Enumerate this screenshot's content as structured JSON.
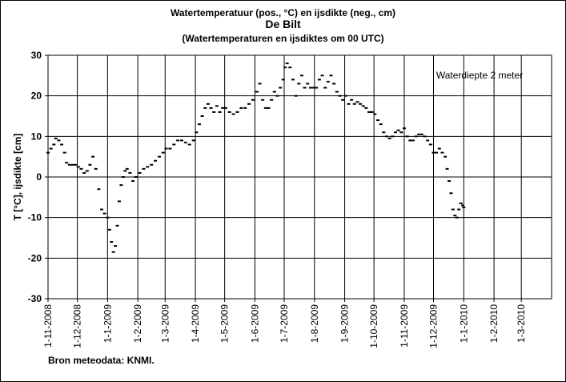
{
  "chart_data": {
    "type": "scatter",
    "title": "Watertemperatuur  (pos., °C) en ijsdikte (neg., cm)",
    "subtitle": "De Bilt",
    "subtitle2": "(Watertemperaturen  en ijsdiktes om 00 UTC)",
    "xlabel": "",
    "ylabel": "T [°C], ijsdikte [cm]",
    "ylim": [
      -30,
      30
    ],
    "yticks": [
      -30,
      -20,
      -10,
      0,
      10,
      20,
      30
    ],
    "x_start": "2008-11-01",
    "x_end": "2010-04-01",
    "xtick_labels": [
      "1-11-2008",
      "1-12-2008",
      "1-1-2009",
      "1-2-2009",
      "1-3-2009",
      "1-4-2009",
      "1-5-2009",
      "1-6-2009",
      "1-7-2009",
      "1-8-2009",
      "1-9-2009",
      "1-10-2009",
      "1-11-2009",
      "1-12-2009",
      "1-1-2010",
      "1-2-2010",
      "1-3-2010"
    ],
    "xtick_dates": [
      "2008-11-01",
      "2008-12-01",
      "2009-01-01",
      "2009-02-01",
      "2009-03-01",
      "2009-04-01",
      "2009-05-01",
      "2009-06-01",
      "2009-07-01",
      "2009-08-01",
      "2009-09-01",
      "2009-10-01",
      "2009-11-01",
      "2009-12-01",
      "2010-01-01",
      "2010-02-01",
      "2010-03-01"
    ],
    "grid": true,
    "annotation": "Waterdiepte 2 meter",
    "series": [
      {
        "name": "",
        "color": "#000000",
        "points": [
          [
            "2008-11-01",
            6
          ],
          [
            "2008-11-04",
            7
          ],
          [
            "2008-11-07",
            8
          ],
          [
            "2008-11-09",
            9.5
          ],
          [
            "2008-11-12",
            9
          ],
          [
            "2008-11-15",
            8
          ],
          [
            "2008-11-18",
            6
          ],
          [
            "2008-11-20",
            3.5
          ],
          [
            "2008-11-23",
            3
          ],
          [
            "2008-11-26",
            3
          ],
          [
            "2008-11-29",
            3
          ],
          [
            "2008-12-02",
            2.5
          ],
          [
            "2008-12-05",
            2
          ],
          [
            "2008-12-08",
            1
          ],
          [
            "2008-12-11",
            1.5
          ],
          [
            "2008-12-14",
            3
          ],
          [
            "2008-12-17",
            5
          ],
          [
            "2008-12-20",
            2
          ],
          [
            "2008-12-23",
            -3
          ],
          [
            "2008-12-26",
            -8
          ],
          [
            "2008-12-29",
            -9
          ],
          [
            "2009-01-01",
            -10
          ],
          [
            "2009-01-03",
            -13
          ],
          [
            "2009-01-05",
            -16
          ],
          [
            "2009-01-07",
            -18.5
          ],
          [
            "2009-01-09",
            -17
          ],
          [
            "2009-01-11",
            -12
          ],
          [
            "2009-01-13",
            -6
          ],
          [
            "2009-01-15",
            -2
          ],
          [
            "2009-01-17",
            0
          ],
          [
            "2009-01-19",
            1.5
          ],
          [
            "2009-01-21",
            2
          ],
          [
            "2009-01-24",
            1
          ],
          [
            "2009-01-27",
            -1
          ],
          [
            "2009-01-30",
            0
          ],
          [
            "2009-02-03",
            1
          ],
          [
            "2009-02-07",
            2
          ],
          [
            "2009-02-11",
            2.5
          ],
          [
            "2009-02-15",
            3
          ],
          [
            "2009-02-19",
            4
          ],
          [
            "2009-02-23",
            5
          ],
          [
            "2009-02-27",
            6
          ],
          [
            "2009-03-02",
            7
          ],
          [
            "2009-03-06",
            7
          ],
          [
            "2009-03-10",
            8
          ],
          [
            "2009-03-14",
            9
          ],
          [
            "2009-03-18",
            9
          ],
          [
            "2009-03-22",
            8.5
          ],
          [
            "2009-03-26",
            8
          ],
          [
            "2009-03-30",
            9
          ],
          [
            "2009-04-02",
            11
          ],
          [
            "2009-04-05",
            13
          ],
          [
            "2009-04-08",
            15
          ],
          [
            "2009-04-11",
            17
          ],
          [
            "2009-04-14",
            18
          ],
          [
            "2009-04-17",
            17
          ],
          [
            "2009-04-20",
            16
          ],
          [
            "2009-04-23",
            17.5
          ],
          [
            "2009-04-26",
            16
          ],
          [
            "2009-04-29",
            17
          ],
          [
            "2009-05-02",
            17
          ],
          [
            "2009-05-06",
            16
          ],
          [
            "2009-05-10",
            15.5
          ],
          [
            "2009-05-14",
            16
          ],
          [
            "2009-05-18",
            17
          ],
          [
            "2009-05-22",
            17
          ],
          [
            "2009-05-26",
            18
          ],
          [
            "2009-05-30",
            19
          ],
          [
            "2009-06-03",
            21
          ],
          [
            "2009-06-06",
            23
          ],
          [
            "2009-06-09",
            19
          ],
          [
            "2009-06-12",
            17
          ],
          [
            "2009-06-15",
            17
          ],
          [
            "2009-06-18",
            19
          ],
          [
            "2009-06-21",
            21
          ],
          [
            "2009-06-24",
            20
          ],
          [
            "2009-06-27",
            22
          ],
          [
            "2009-06-30",
            24
          ],
          [
            "2009-07-02",
            27
          ],
          [
            "2009-07-04",
            28
          ],
          [
            "2009-07-07",
            27
          ],
          [
            "2009-07-10",
            24
          ],
          [
            "2009-07-13",
            20
          ],
          [
            "2009-07-16",
            23
          ],
          [
            "2009-07-19",
            25
          ],
          [
            "2009-07-22",
            22
          ],
          [
            "2009-07-25",
            23
          ],
          [
            "2009-07-28",
            22
          ],
          [
            "2009-07-31",
            22
          ],
          [
            "2009-08-03",
            22
          ],
          [
            "2009-08-06",
            24
          ],
          [
            "2009-08-09",
            25
          ],
          [
            "2009-08-12",
            22
          ],
          [
            "2009-08-15",
            23.5
          ],
          [
            "2009-08-18",
            25
          ],
          [
            "2009-08-21",
            23
          ],
          [
            "2009-08-24",
            21
          ],
          [
            "2009-08-27",
            20
          ],
          [
            "2009-08-30",
            19
          ],
          [
            "2009-09-02",
            20
          ],
          [
            "2009-09-05",
            18
          ],
          [
            "2009-09-08",
            19
          ],
          [
            "2009-09-11",
            18
          ],
          [
            "2009-09-14",
            18.5
          ],
          [
            "2009-09-17",
            18
          ],
          [
            "2009-09-20",
            17.5
          ],
          [
            "2009-09-23",
            17
          ],
          [
            "2009-09-26",
            16
          ],
          [
            "2009-09-29",
            16
          ],
          [
            "2009-10-02",
            15.5
          ],
          [
            "2009-10-05",
            14
          ],
          [
            "2009-10-08",
            13
          ],
          [
            "2009-10-11",
            11
          ],
          [
            "2009-10-14",
            10
          ],
          [
            "2009-10-17",
            9.5
          ],
          [
            "2009-10-20",
            10
          ],
          [
            "2009-10-23",
            11
          ],
          [
            "2009-10-26",
            11.5
          ],
          [
            "2009-10-29",
            11
          ],
          [
            "2009-11-01",
            12
          ],
          [
            "2009-11-04",
            10
          ],
          [
            "2009-11-07",
            9
          ],
          [
            "2009-11-10",
            9
          ],
          [
            "2009-11-13",
            10
          ],
          [
            "2009-11-16",
            10.5
          ],
          [
            "2009-11-19",
            10.5
          ],
          [
            "2009-11-22",
            10
          ],
          [
            "2009-11-25",
            9
          ],
          [
            "2009-11-28",
            8
          ],
          [
            "2009-12-01",
            6
          ],
          [
            "2009-12-04",
            6
          ],
          [
            "2009-12-07",
            7
          ],
          [
            "2009-12-10",
            6
          ],
          [
            "2009-12-13",
            5
          ],
          [
            "2009-12-15",
            2
          ],
          [
            "2009-12-17",
            -1
          ],
          [
            "2009-12-19",
            -4
          ],
          [
            "2009-12-21",
            -8
          ],
          [
            "2009-12-23",
            -9.5
          ],
          [
            "2009-12-25",
            -10
          ],
          [
            "2009-12-27",
            -8
          ],
          [
            "2009-12-29",
            -6.5
          ],
          [
            "2009-12-31",
            -7
          ],
          [
            "2010-01-01",
            -7.5
          ]
        ]
      }
    ]
  },
  "source_label": "Bron meteodata:  KNMI."
}
